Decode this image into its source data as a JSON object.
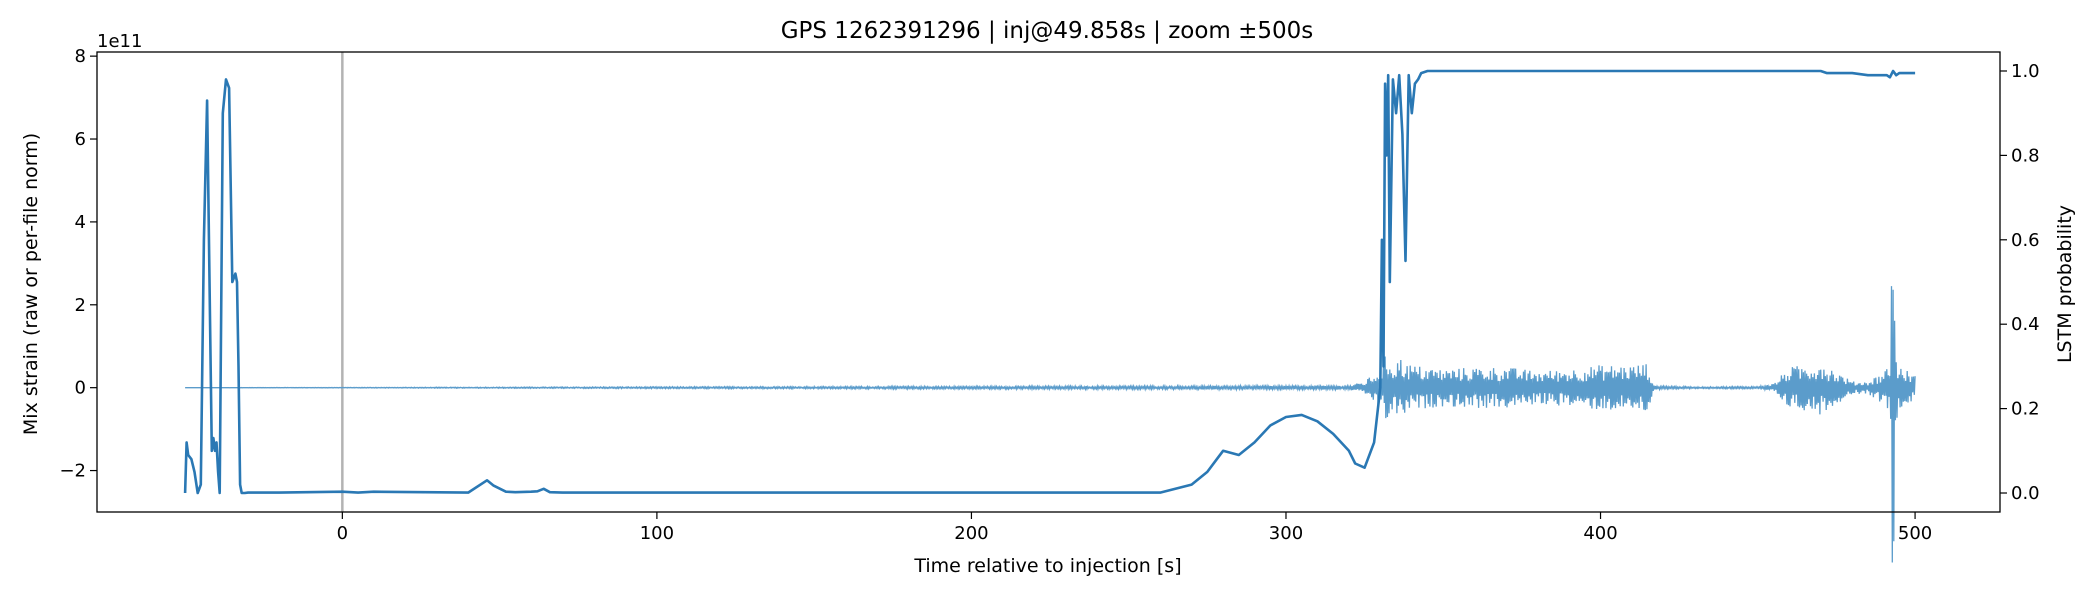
{
  "chart_data": {
    "type": "line",
    "title": "GPS 1262391296 | inj@49.858s | zoom ±500s",
    "xlabel": "Time relative to injection [s]",
    "ylabel_left": "Mix strain (raw or per-file norm)",
    "ylabel_right": "LSTM probability",
    "left_offset_text": "1e11",
    "xlim": [
      -78,
      527
    ],
    "ylim_left": [
      -3.0,
      8.1
    ],
    "ylim_right": [
      -0.045,
      1.045
    ],
    "x_ticks": [
      0,
      100,
      200,
      300,
      400,
      500
    ],
    "x_tick_labels": [
      "0",
      "100",
      "200",
      "300",
      "400",
      "500"
    ],
    "y_left_ticks": [
      -2,
      0,
      2,
      4,
      6,
      8
    ],
    "y_left_tick_labels": [
      "−2",
      "0",
      "2",
      "4",
      "6",
      "8"
    ],
    "y_right_ticks": [
      0.0,
      0.2,
      0.4,
      0.6,
      0.8,
      1.0
    ],
    "y_right_tick_labels": [
      "0.0",
      "0.2",
      "0.4",
      "0.6",
      "0.8",
      "1.0"
    ],
    "injection_marker_x": 0,
    "grid": false,
    "colors": {
      "strain": "#5b9ccb",
      "probability": "#2a78b4",
      "marker": "#b3b3b3"
    },
    "series": [
      {
        "axis": "left",
        "x": [
          -50,
          320,
          325,
          328,
          330,
          332,
          334,
          336,
          340,
          345,
          350,
          360,
          370,
          380,
          390,
          400,
          410,
          415,
          417,
          430,
          450,
          455,
          460,
          465,
          470,
          475,
          480,
          485,
          490,
          492,
          493,
          493.5,
          494,
          495,
          498,
          500
        ],
        "amp": [
          0.0,
          0.05,
          0.15,
          0.35,
          0.5,
          0.85,
          0.6,
          0.75,
          0.55,
          0.5,
          0.45,
          0.5,
          0.5,
          0.4,
          0.45,
          0.55,
          0.55,
          0.6,
          0.05,
          0.02,
          0.03,
          0.1,
          0.5,
          0.55,
          0.65,
          0.4,
          0.15,
          0.15,
          0.4,
          0.6,
          6.2,
          2.0,
          0.8,
          0.5,
          0.4,
          0.3
        ]
      },
      {
        "axis": "right",
        "x": [
          -50,
          -49.5,
          -49,
          -48,
          -47,
          -46,
          -45,
          -44,
          -43,
          -42,
          -41.5,
          -41,
          -40.5,
          -40,
          -39.5,
          -39,
          -38,
          -37,
          -36,
          -35,
          -34,
          -33.5,
          -33,
          -32.5,
          -32,
          -31,
          -30,
          -20,
          0,
          5,
          10,
          40,
          46,
          48,
          52,
          55,
          60,
          62,
          64,
          66,
          70,
          100,
          200,
          260,
          270,
          275,
          278,
          280,
          285,
          290,
          295,
          300,
          305,
          310,
          315,
          320,
          322,
          325,
          328,
          330,
          330.5,
          331,
          331.5,
          332,
          332.5,
          333,
          334,
          335,
          336,
          337,
          338,
          339,
          340,
          341,
          342,
          343,
          345,
          350,
          400,
          470,
          472,
          480,
          485,
          490,
          491,
          492,
          493,
          494,
          495,
          500
        ],
        "y": [
          0.0,
          0.12,
          0.09,
          0.08,
          0.05,
          0.0,
          0.02,
          0.6,
          0.93,
          0.38,
          0.1,
          0.13,
          0.1,
          0.12,
          0.05,
          0.0,
          0.9,
          0.98,
          0.96,
          0.5,
          0.52,
          0.5,
          0.3,
          0.02,
          0.0,
          0.0,
          0.001,
          0.001,
          0.003,
          0.001,
          0.003,
          0.001,
          0.03,
          0.018,
          0.003,
          0.002,
          0.003,
          0.004,
          0.01,
          0.002,
          0.001,
          0.001,
          0.001,
          0.001,
          0.02,
          0.05,
          0.08,
          0.1,
          0.09,
          0.12,
          0.16,
          0.18,
          0.185,
          0.17,
          0.14,
          0.1,
          0.07,
          0.06,
          0.12,
          0.25,
          0.6,
          0.3,
          0.97,
          0.8,
          0.99,
          0.5,
          0.98,
          0.9,
          0.99,
          0.85,
          0.55,
          0.99,
          0.9,
          0.97,
          0.98,
          0.995,
          1.0,
          1.0,
          1.0,
          1.0,
          0.995,
          0.995,
          0.99,
          0.99,
          0.99,
          0.985,
          1.0,
          0.99,
          0.995,
          0.995
        ]
      }
    ]
  }
}
